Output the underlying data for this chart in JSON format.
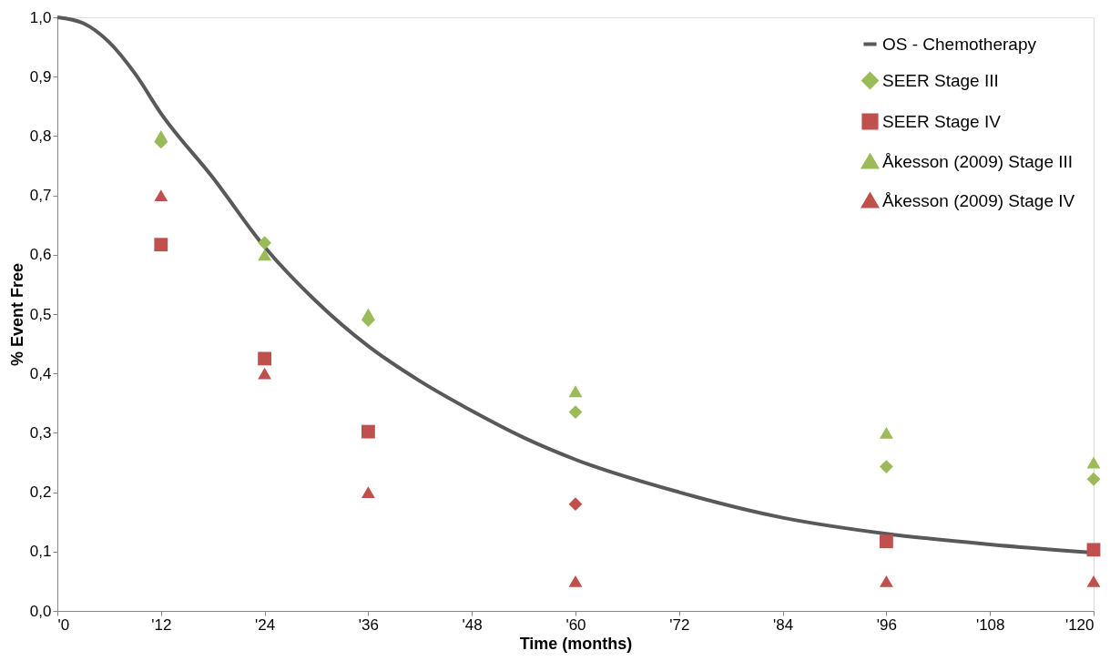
{
  "chart_data": {
    "type": "scatter",
    "xlabel": "Time (months)",
    "ylabel": "% Event Free",
    "xlim": [
      0,
      120
    ],
    "ylim": [
      0,
      1
    ],
    "xticks": [
      {
        "value": 0,
        "label": "'0"
      },
      {
        "value": 12,
        "label": "'12"
      },
      {
        "value": 24,
        "label": "'24"
      },
      {
        "value": 36,
        "label": "'36"
      },
      {
        "value": 48,
        "label": "'48"
      },
      {
        "value": 60,
        "label": "'60"
      },
      {
        "value": 72,
        "label": "'72"
      },
      {
        "value": 84,
        "label": "'84"
      },
      {
        "value": 96,
        "label": "'96"
      },
      {
        "value": 108,
        "label": "'108"
      },
      {
        "value": 120,
        "label": "'120"
      }
    ],
    "yticks": [
      {
        "value": 0,
        "label": "0,0"
      },
      {
        "value": 0.1,
        "label": "0,1"
      },
      {
        "value": 0.2,
        "label": "0,2"
      },
      {
        "value": 0.3,
        "label": "0,3"
      },
      {
        "value": 0.4,
        "label": "0,4"
      },
      {
        "value": 0.5,
        "label": "0,5"
      },
      {
        "value": 0.6,
        "label": "0,6"
      },
      {
        "value": 0.7,
        "label": "0,7"
      },
      {
        "value": 0.8,
        "label": "0,8"
      },
      {
        "value": 0.9,
        "label": "0,9"
      },
      {
        "value": 1.0,
        "label": "1,0"
      }
    ],
    "grid": false,
    "legend": "top right",
    "series": [
      {
        "name": "OS - Chemotherapy",
        "type": "line",
        "line_style": "solid",
        "color": "#595959",
        "x": [
          0,
          3,
          6,
          9,
          12,
          18,
          24,
          30,
          36,
          42,
          48,
          54,
          60,
          72,
          84,
          96,
          108,
          120
        ],
        "values": [
          1.0,
          0.99,
          0.958,
          0.905,
          0.838,
          0.73,
          0.613,
          0.521,
          0.446,
          0.387,
          0.337,
          0.292,
          0.255,
          0.2,
          0.157,
          0.13,
          0.112,
          0.098
        ]
      },
      {
        "name": "SEER Stage III",
        "marker": "diamond",
        "color": "#9bbb59",
        "x": [
          12,
          24,
          36,
          60,
          96,
          120
        ],
        "values": [
          0.79,
          0.62,
          0.49,
          0.335,
          0.243,
          0.222
        ]
      },
      {
        "name": "SEER Stage IV",
        "marker": "square",
        "color": "#c0504d",
        "x": [
          12,
          24,
          36,
          96,
          120
        ],
        "values": [
          0.617,
          0.425,
          0.302,
          0.117,
          0.103
        ]
      },
      {
        "name": "Åkesson (2009) Stage III",
        "marker": "triangle",
        "color": "#9bbb59",
        "x": [
          12,
          24,
          36,
          60,
          96,
          120
        ],
        "values": [
          0.8,
          0.6,
          0.5,
          0.37,
          0.3,
          0.25
        ]
      },
      {
        "name": "Åkesson (2009) Stage IV",
        "marker": "triangle",
        "color": "#c0504d",
        "x": [
          12,
          24,
          36,
          60,
          96,
          120
        ],
        "values": [
          0.7,
          0.4,
          0.2,
          0.05,
          0.05,
          0.05
        ]
      },
      {
        "marker": "diamond",
        "color": "#c0504d",
        "x": [
          60
        ],
        "values": [
          0.18
        ]
      }
    ]
  }
}
